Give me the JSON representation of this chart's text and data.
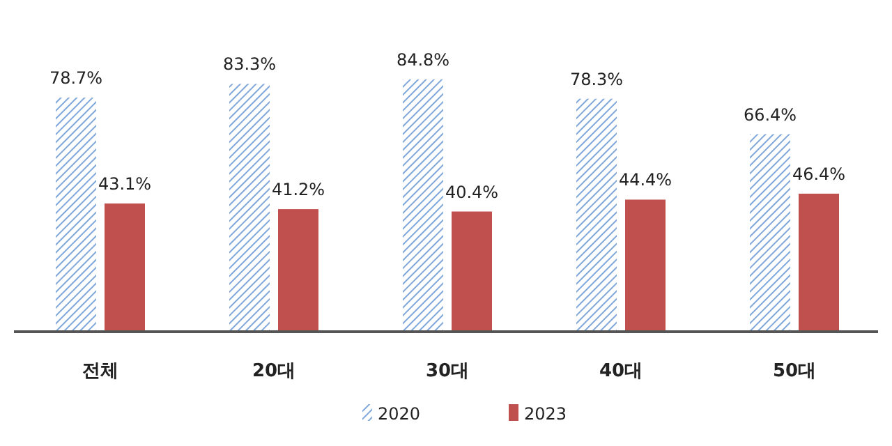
{
  "chart_data": {
    "type": "bar",
    "categories": [
      "전체",
      "20대",
      "30대",
      "40대",
      "50대"
    ],
    "series": [
      {
        "name": "2020",
        "color": "#7fa7d9",
        "values": [
          78.7,
          83.3,
          84.8,
          78.3,
          66.4
        ],
        "value_labels": [
          "78.7%",
          "83.3%",
          "84.8%",
          "78.3%",
          "66.4%"
        ]
      },
      {
        "name": "2023",
        "color": "#c0504d",
        "values": [
          43.1,
          41.2,
          40.4,
          44.4,
          46.4
        ],
        "value_labels": [
          "43.1%",
          "41.2%",
          "40.4%",
          "44.4%",
          "46.4%"
        ]
      }
    ],
    "legend": "bottom"
  }
}
